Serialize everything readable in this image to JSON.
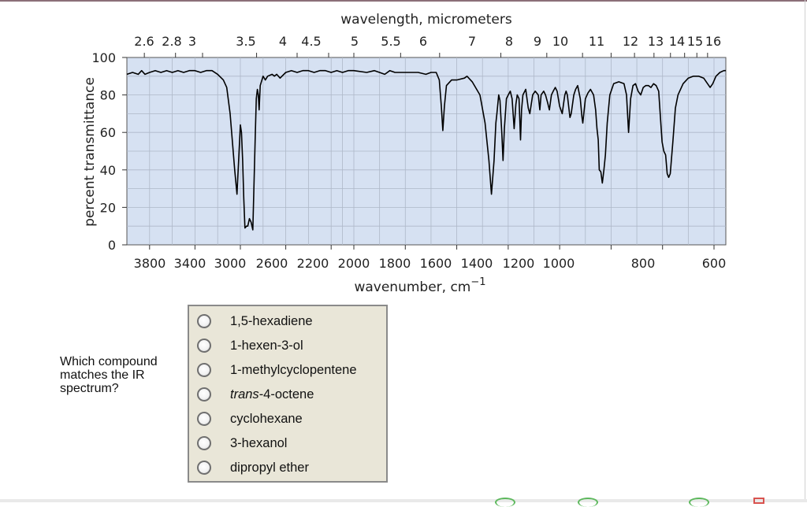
{
  "chart_data": {
    "type": "line",
    "xlabel": "wavenumber, cm",
    "xlabel_superscript": "−1",
    "x2label": "wavelength, micrometers",
    "ylabel": "percent transmittance",
    "ylim": [
      0,
      100
    ],
    "y_ticks": [
      "0",
      "20",
      "40",
      "60",
      "80",
      "100"
    ],
    "x_ticks": [
      "3800",
      "3400",
      "3000",
      "2600",
      "2200",
      "2000",
      "1800",
      "1600",
      "1400",
      "1200",
      "1000",
      "800",
      "600"
    ],
    "x2_ticks": [
      "2.6",
      "2.8",
      "3",
      "3.5",
      "4",
      "4.5",
      "5",
      "5.5",
      "6",
      "7",
      "8",
      "9",
      "10",
      "11",
      "12",
      "13",
      "14",
      "15",
      "16"
    ],
    "grid": true,
    "plot_background": "#d6e1f2",
    "line_color": "#000000",
    "series": [
      {
        "points": [
          [
            4000,
            91
          ],
          [
            3950,
            92
          ],
          [
            3900,
            91
          ],
          [
            3870,
            93
          ],
          [
            3840,
            91
          ],
          [
            3800,
            92
          ],
          [
            3750,
            93
          ],
          [
            3700,
            92
          ],
          [
            3650,
            93
          ],
          [
            3600,
            92
          ],
          [
            3550,
            93
          ],
          [
            3500,
            92
          ],
          [
            3450,
            93
          ],
          [
            3400,
            93
          ],
          [
            3350,
            92
          ],
          [
            3300,
            93
          ],
          [
            3250,
            93
          ],
          [
            3200,
            91
          ],
          [
            3150,
            88
          ],
          [
            3120,
            84
          ],
          [
            3090,
            70
          ],
          [
            3070,
            55
          ],
          [
            3050,
            40
          ],
          [
            3030,
            27
          ],
          [
            3015,
            45
          ],
          [
            3000,
            64
          ],
          [
            2990,
            60
          ],
          [
            2980,
            45
          ],
          [
            2970,
            25
          ],
          [
            2960,
            9
          ],
          [
            2945,
            10
          ],
          [
            2935,
            10
          ],
          [
            2920,
            14
          ],
          [
            2905,
            12
          ],
          [
            2890,
            8
          ],
          [
            2870,
            55
          ],
          [
            2860,
            78
          ],
          [
            2850,
            83
          ],
          [
            2842,
            80
          ],
          [
            2835,
            72
          ],
          [
            2825,
            85
          ],
          [
            2800,
            90
          ],
          [
            2780,
            88
          ],
          [
            2760,
            90
          ],
          [
            2720,
            91
          ],
          [
            2700,
            90
          ],
          [
            2680,
            91
          ],
          [
            2650,
            89
          ],
          [
            2600,
            92
          ],
          [
            2550,
            93
          ],
          [
            2500,
            92
          ],
          [
            2450,
            93
          ],
          [
            2400,
            93
          ],
          [
            2350,
            92
          ],
          [
            2300,
            93
          ],
          [
            2250,
            93
          ],
          [
            2200,
            92
          ],
          [
            2150,
            93
          ],
          [
            2100,
            92
          ],
          [
            2050,
            93
          ],
          [
            2000,
            93
          ],
          [
            1950,
            92
          ],
          [
            1920,
            93
          ],
          [
            1900,
            92
          ],
          [
            1880,
            91
          ],
          [
            1860,
            93
          ],
          [
            1840,
            92
          ],
          [
            1800,
            92
          ],
          [
            1750,
            92
          ],
          [
            1720,
            91
          ],
          [
            1700,
            92
          ],
          [
            1680,
            92
          ],
          [
            1668,
            88
          ],
          [
            1660,
            74
          ],
          [
            1654,
            61
          ],
          [
            1648,
            74
          ],
          [
            1640,
            85
          ],
          [
            1620,
            88
          ],
          [
            1600,
            88
          ],
          [
            1570,
            89
          ],
          [
            1560,
            90
          ],
          [
            1540,
            87
          ],
          [
            1510,
            80
          ],
          [
            1490,
            65
          ],
          [
            1475,
            45
          ],
          [
            1465,
            27
          ],
          [
            1455,
            45
          ],
          [
            1448,
            65
          ],
          [
            1444,
            70
          ],
          [
            1437,
            80
          ],
          [
            1432,
            77
          ],
          [
            1425,
            60
          ],
          [
            1420,
            45
          ],
          [
            1415,
            62
          ],
          [
            1407,
            78
          ],
          [
            1400,
            80
          ],
          [
            1392,
            82
          ],
          [
            1385,
            78
          ],
          [
            1377,
            62
          ],
          [
            1370,
            75
          ],
          [
            1365,
            80
          ],
          [
            1358,
            78
          ],
          [
            1352,
            56
          ],
          [
            1348,
            72
          ],
          [
            1343,
            80
          ],
          [
            1332,
            83
          ],
          [
            1322,
            73
          ],
          [
            1316,
            70
          ],
          [
            1305,
            80
          ],
          [
            1295,
            82
          ],
          [
            1283,
            80
          ],
          [
            1277,
            72
          ],
          [
            1272,
            80
          ],
          [
            1262,
            82
          ],
          [
            1255,
            80
          ],
          [
            1247,
            76
          ],
          [
            1240,
            72
          ],
          [
            1232,
            80
          ],
          [
            1225,
            82
          ],
          [
            1217,
            84
          ],
          [
            1210,
            82
          ],
          [
            1200,
            74
          ],
          [
            1190,
            70
          ],
          [
            1185,
            75
          ],
          [
            1180,
            80
          ],
          [
            1175,
            82
          ],
          [
            1170,
            80
          ],
          [
            1160,
            68
          ],
          [
            1155,
            70
          ],
          [
            1145,
            80
          ],
          [
            1138,
            83
          ],
          [
            1130,
            85
          ],
          [
            1120,
            78
          ],
          [
            1113,
            68
          ],
          [
            1110,
            65
          ],
          [
            1100,
            78
          ],
          [
            1090,
            81
          ],
          [
            1080,
            83
          ],
          [
            1068,
            80
          ],
          [
            1060,
            72
          ],
          [
            1055,
            62
          ],
          [
            1050,
            56
          ],
          [
            1046,
            40
          ],
          [
            1040,
            39
          ],
          [
            1034,
            33
          ],
          [
            1028,
            40
          ],
          [
            1022,
            48
          ],
          [
            1015,
            65
          ],
          [
            1005,
            80
          ],
          [
            990,
            86
          ],
          [
            970,
            87
          ],
          [
            950,
            86
          ],
          [
            940,
            80
          ],
          [
            932,
            60
          ],
          [
            924,
            78
          ],
          [
            915,
            85
          ],
          [
            905,
            86
          ],
          [
            895,
            82
          ],
          [
            885,
            80
          ],
          [
            875,
            84
          ],
          [
            865,
            85
          ],
          [
            855,
            85
          ],
          [
            845,
            84
          ],
          [
            835,
            86
          ],
          [
            825,
            85
          ],
          [
            815,
            82
          ],
          [
            802,
            55
          ],
          [
            795,
            50
          ],
          [
            788,
            48
          ],
          [
            782,
            38
          ],
          [
            776,
            36
          ],
          [
            770,
            38
          ],
          [
            760,
            55
          ],
          [
            750,
            73
          ],
          [
            740,
            80
          ],
          [
            720,
            86
          ],
          [
            700,
            89
          ],
          [
            680,
            90
          ],
          [
            660,
            90
          ],
          [
            640,
            89
          ],
          [
            625,
            86
          ],
          [
            615,
            84
          ],
          [
            605,
            86
          ],
          [
            595,
            90
          ],
          [
            585,
            92
          ],
          [
            575,
            93
          ],
          [
            570,
            93
          ]
        ]
      }
    ]
  },
  "question": {
    "text": "Which compound matches the IR spectrum?"
  },
  "choices": [
    {
      "label": "1,5-hexadiene"
    },
    {
      "label_prefix": "trans",
      "label": "1-hexen-3-ol"
    },
    {
      "label": "1-methylcyclopentene"
    },
    {
      "label_prefix": "trans",
      "label": "-4-octene"
    },
    {
      "label": "cyclohexane"
    },
    {
      "label": "3-hexanol"
    },
    {
      "label": "dipropyl ether"
    }
  ]
}
